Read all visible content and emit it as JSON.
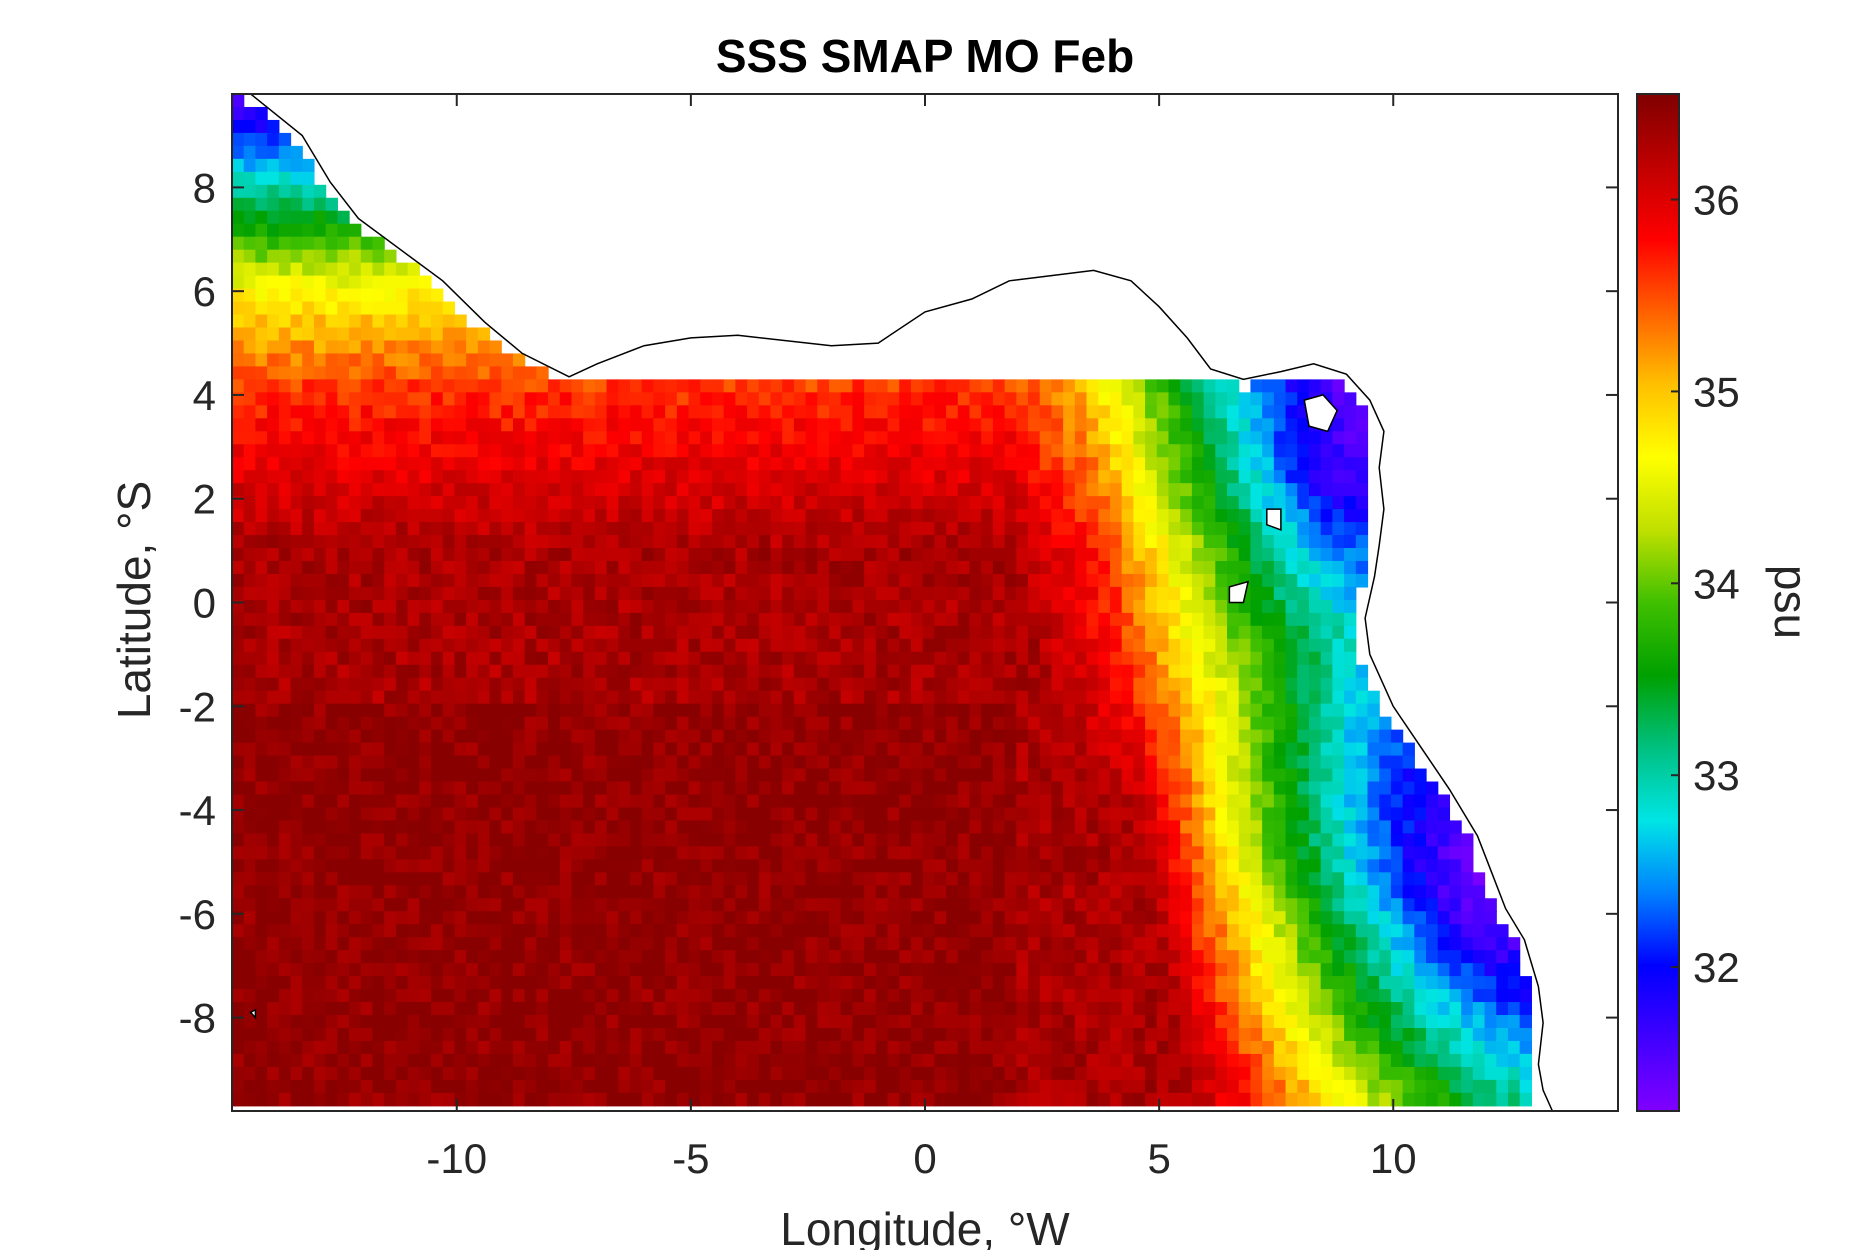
{
  "chart_data": {
    "type": "heatmap",
    "title": "SSS SMAP MO Feb",
    "xlabel": "Longitude, °W",
    "ylabel": "Latitude, °S",
    "colorbar_label": "psu",
    "xlim": [
      -14.8,
      14.8
    ],
    "ylim": [
      -9.8,
      9.8
    ],
    "clim": [
      31.25,
      36.55
    ],
    "x_ticks": [
      -10,
      -5,
      0,
      5,
      10
    ],
    "x_tick_labels": [
      "-10",
      "-5",
      "0",
      "5",
      "10"
    ],
    "y_ticks": [
      -8,
      -6,
      -4,
      -2,
      0,
      2,
      4,
      6,
      8
    ],
    "y_tick_labels": [
      "-8",
      "-6",
      "-4",
      "-2",
      "0",
      "2",
      "4",
      "6",
      "8"
    ],
    "colorbar_ticks": [
      32,
      33,
      34,
      35,
      36
    ],
    "colorbar_tick_labels": [
      "32",
      "33",
      "34",
      "35",
      "36"
    ],
    "colormap": [
      "#8000ff",
      "#4000ff",
      "#0000ff",
      "#0080ff",
      "#00e5e5",
      "#00c080",
      "#00a000",
      "#40c000",
      "#c0e000",
      "#ffff00",
      "#ffc000",
      "#ff6000",
      "#ff0000",
      "#c00000",
      "#800000"
    ],
    "coastline": [
      [
        -14.4,
        9.8
      ],
      [
        -13.3,
        9.0
      ],
      [
        -12.7,
        8.1
      ],
      [
        -12.1,
        7.4
      ],
      [
        -11.2,
        6.8
      ],
      [
        -10.3,
        6.2
      ],
      [
        -9.4,
        5.4
      ],
      [
        -8.6,
        4.8
      ],
      [
        -7.6,
        4.35
      ],
      [
        -7.0,
        4.6
      ],
      [
        -6.0,
        4.95
      ],
      [
        -5.0,
        5.1
      ],
      [
        -4.0,
        5.15
      ],
      [
        -2.0,
        4.95
      ],
      [
        -1.0,
        5.0
      ],
      [
        0.0,
        5.6
      ],
      [
        1.0,
        5.85
      ],
      [
        1.8,
        6.2
      ],
      [
        2.7,
        6.3
      ],
      [
        3.6,
        6.4
      ],
      [
        4.4,
        6.2
      ],
      [
        5.0,
        5.7
      ],
      [
        5.6,
        5.1
      ],
      [
        6.1,
        4.5
      ],
      [
        6.8,
        4.3
      ],
      [
        7.6,
        4.45
      ],
      [
        8.3,
        4.6
      ],
      [
        9.0,
        4.4
      ],
      [
        9.5,
        3.9
      ],
      [
        9.8,
        3.3
      ],
      [
        9.7,
        2.6
      ],
      [
        9.8,
        1.8
      ],
      [
        9.7,
        1.1
      ],
      [
        9.6,
        0.5
      ],
      [
        9.4,
        -0.3
      ],
      [
        9.5,
        -1.0
      ],
      [
        10.0,
        -2.0
      ],
      [
        10.6,
        -2.8
      ],
      [
        11.2,
        -3.6
      ],
      [
        11.8,
        -4.5
      ],
      [
        12.1,
        -5.2
      ],
      [
        12.4,
        -5.9
      ],
      [
        12.8,
        -6.5
      ],
      [
        13.1,
        -7.4
      ],
      [
        13.2,
        -8.1
      ],
      [
        13.1,
        -8.9
      ],
      [
        13.2,
        -9.4
      ],
      [
        13.4,
        -9.8
      ]
    ],
    "islands": [
      [
        [
          8.1,
          3.9
        ],
        [
          8.5,
          4.0
        ],
        [
          8.8,
          3.7
        ],
        [
          8.6,
          3.3
        ],
        [
          8.2,
          3.4
        ]
      ],
      [
        [
          7.3,
          1.8
        ],
        [
          7.6,
          1.8
        ],
        [
          7.6,
          1.4
        ],
        [
          7.3,
          1.5
        ]
      ],
      [
        [
          6.5,
          0.3
        ],
        [
          6.9,
          0.4
        ],
        [
          6.8,
          0.0
        ],
        [
          6.5,
          0.0
        ]
      ],
      [
        [
          -14.4,
          -7.9
        ],
        [
          -14.3,
          -7.85
        ],
        [
          -14.3,
          -8.0
        ]
      ]
    ]
  }
}
